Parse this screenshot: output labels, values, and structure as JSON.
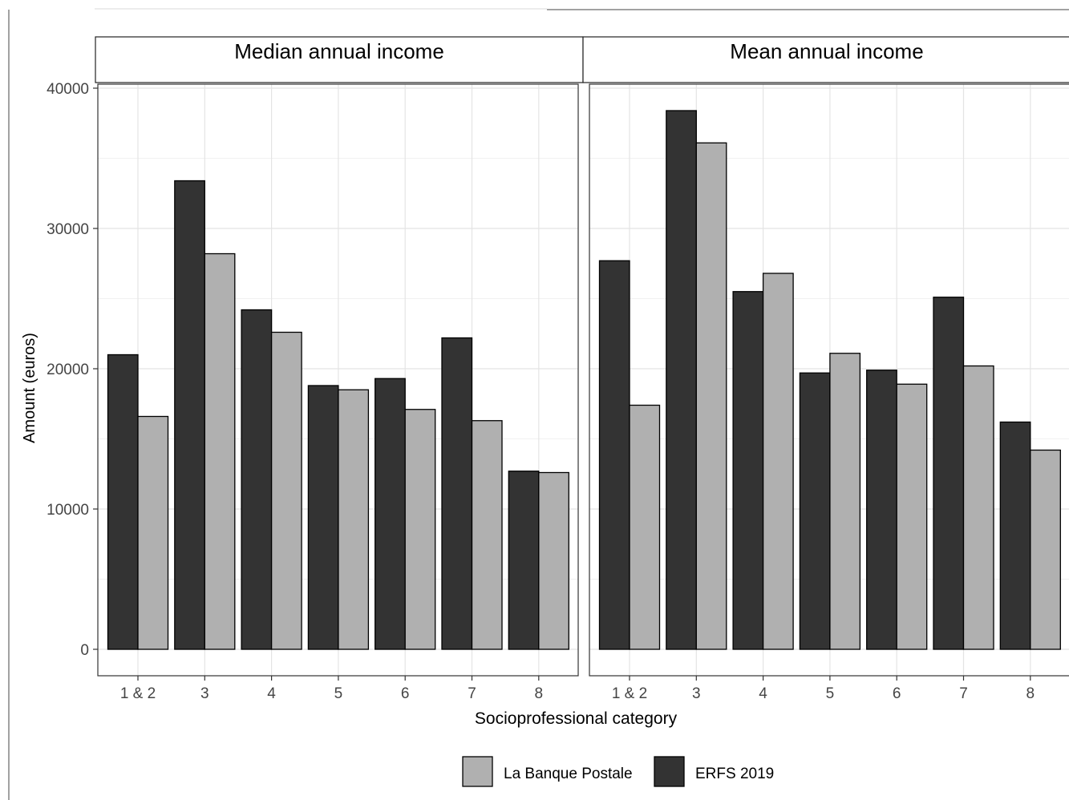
{
  "chart_data": {
    "type": "bar",
    "facet_titles": [
      "Median annual income",
      "Mean annual income"
    ],
    "xlabel": "Socioprofessional category",
    "ylabel": "Amount (euros)",
    "ylim": [
      0,
      40000
    ],
    "yticks": [
      0,
      10000,
      20000,
      30000,
      40000
    ],
    "categories": [
      "1 & 2",
      "3",
      "4",
      "5",
      "6",
      "7",
      "8"
    ],
    "grid": true,
    "legend_position": "bottom",
    "legend": [
      {
        "name": "La Banque Postale",
        "color": "#b0b0b0"
      },
      {
        "name": "ERFS 2019",
        "color": "#333333"
      }
    ],
    "panels": [
      {
        "title": "Median annual income",
        "series": [
          {
            "name": "ERFS 2019",
            "values": [
              21000,
              33400,
              24200,
              18800,
              19300,
              22200,
              12700
            ]
          },
          {
            "name": "La Banque Postale",
            "values": [
              16600,
              28200,
              22600,
              18500,
              17100,
              16300,
              12600
            ]
          }
        ]
      },
      {
        "title": "Mean annual income",
        "series": [
          {
            "name": "ERFS 2019",
            "values": [
              27700,
              38400,
              25500,
              19700,
              19900,
              25100,
              16200
            ]
          },
          {
            "name": "La Banque Postale",
            "values": [
              17400,
              36100,
              26800,
              21100,
              18900,
              20200,
              14200
            ]
          }
        ]
      }
    ]
  }
}
